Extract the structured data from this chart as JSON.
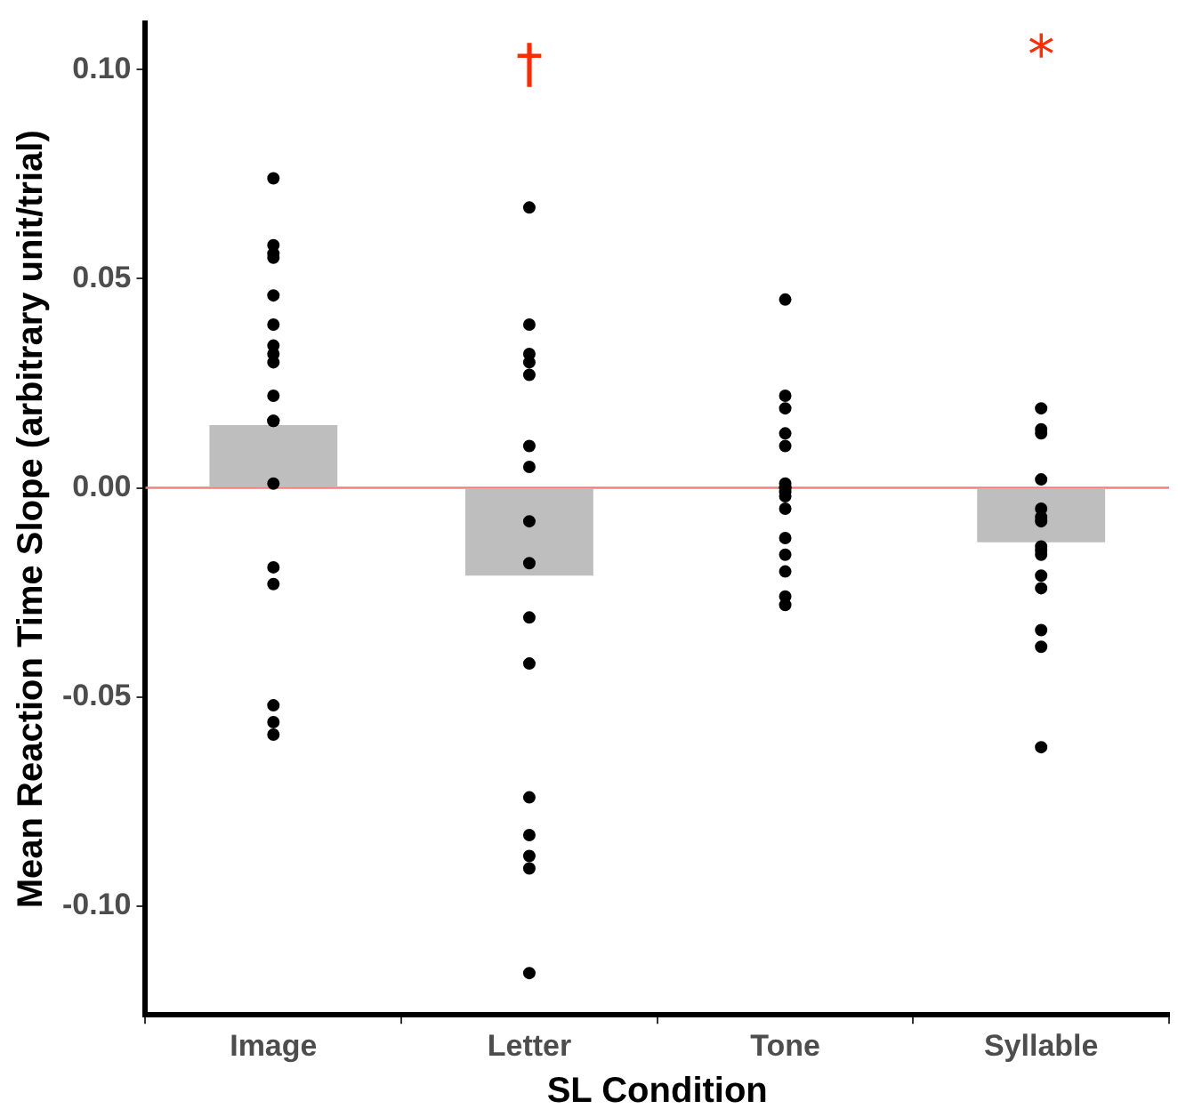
{
  "chart_data": {
    "type": "bar",
    "xlabel": "SL Condition",
    "ylabel": "Mean Reaction Time Slope (arbitrary unit/trial)",
    "categories": [
      "Image",
      "Letter",
      "Tone",
      "Syllable"
    ],
    "series": [
      {
        "color": "#bebebe",
        "values": [
          0.015,
          -0.021,
          0.0,
          -0.013
        ]
      },
      {
        "type": "scatter",
        "color": "#000000",
        "x": [
          "Image",
          "Image",
          "Image",
          "Image",
          "Image",
          "Image",
          "Image",
          "Image",
          "Image",
          "Image",
          "Image",
          "Image",
          "Image",
          "Image",
          "Image",
          "Image",
          "Image",
          "Image",
          "Letter",
          "Letter",
          "Letter",
          "Letter",
          "Letter",
          "Letter",
          "Letter",
          "Letter",
          "Letter",
          "Letter",
          "Letter",
          "Letter",
          "Letter",
          "Letter",
          "Letter",
          "Letter",
          "Tone",
          "Tone",
          "Tone",
          "Tone",
          "Tone",
          "Tone",
          "Tone",
          "Tone",
          "Tone",
          "Tone",
          "Tone",
          "Tone",
          "Tone",
          "Tone",
          "Tone",
          "Tone",
          "Syllable",
          "Syllable",
          "Syllable",
          "Syllable",
          "Syllable",
          "Syllable",
          "Syllable",
          "Syllable",
          "Syllable",
          "Syllable",
          "Syllable",
          "Syllable",
          "Syllable",
          "Syllable",
          "Syllable"
        ],
        "values": [
          0.074,
          0.058,
          0.055,
          0.056,
          0.046,
          0.039,
          0.034,
          0.032,
          0.03,
          0.022,
          0.016,
          0.016,
          0.001,
          -0.019,
          -0.023,
          -0.052,
          -0.056,
          -0.059,
          0.067,
          0.039,
          0.032,
          0.03,
          0.027,
          0.01,
          0.005,
          -0.008,
          -0.018,
          -0.031,
          -0.042,
          -0.074,
          -0.083,
          -0.088,
          -0.091,
          -0.116,
          0.045,
          0.022,
          0.019,
          0.013,
          0.01,
          0.001,
          0.0,
          -0.001,
          0.0,
          -0.002,
          -0.005,
          -0.012,
          -0.016,
          -0.02,
          -0.026,
          -0.028,
          0.019,
          0.013,
          0.014,
          0.002,
          -0.005,
          -0.008,
          -0.007,
          -0.014,
          -0.016,
          -0.015,
          -0.021,
          -0.024,
          -0.034,
          -0.038,
          -0.062
        ]
      }
    ],
    "ylim": [
      -0.126,
      0.111
    ],
    "yticks": [
      {
        "value": -0.1,
        "label": "-0.10"
      },
      {
        "value": -0.05,
        "label": "-0.05"
      },
      {
        "value": 0,
        "label": "0.00"
      },
      {
        "value": 0.05,
        "label": "0.05"
      },
      {
        "value": 0.1,
        "label": "0.10"
      }
    ],
    "ref_lines": [
      {
        "axis": "y",
        "value": 0,
        "color": "#f08080"
      }
    ],
    "annotations": [
      "†",
      "*"
    ],
    "marker": "circle",
    "legend": false,
    "grid": false
  }
}
